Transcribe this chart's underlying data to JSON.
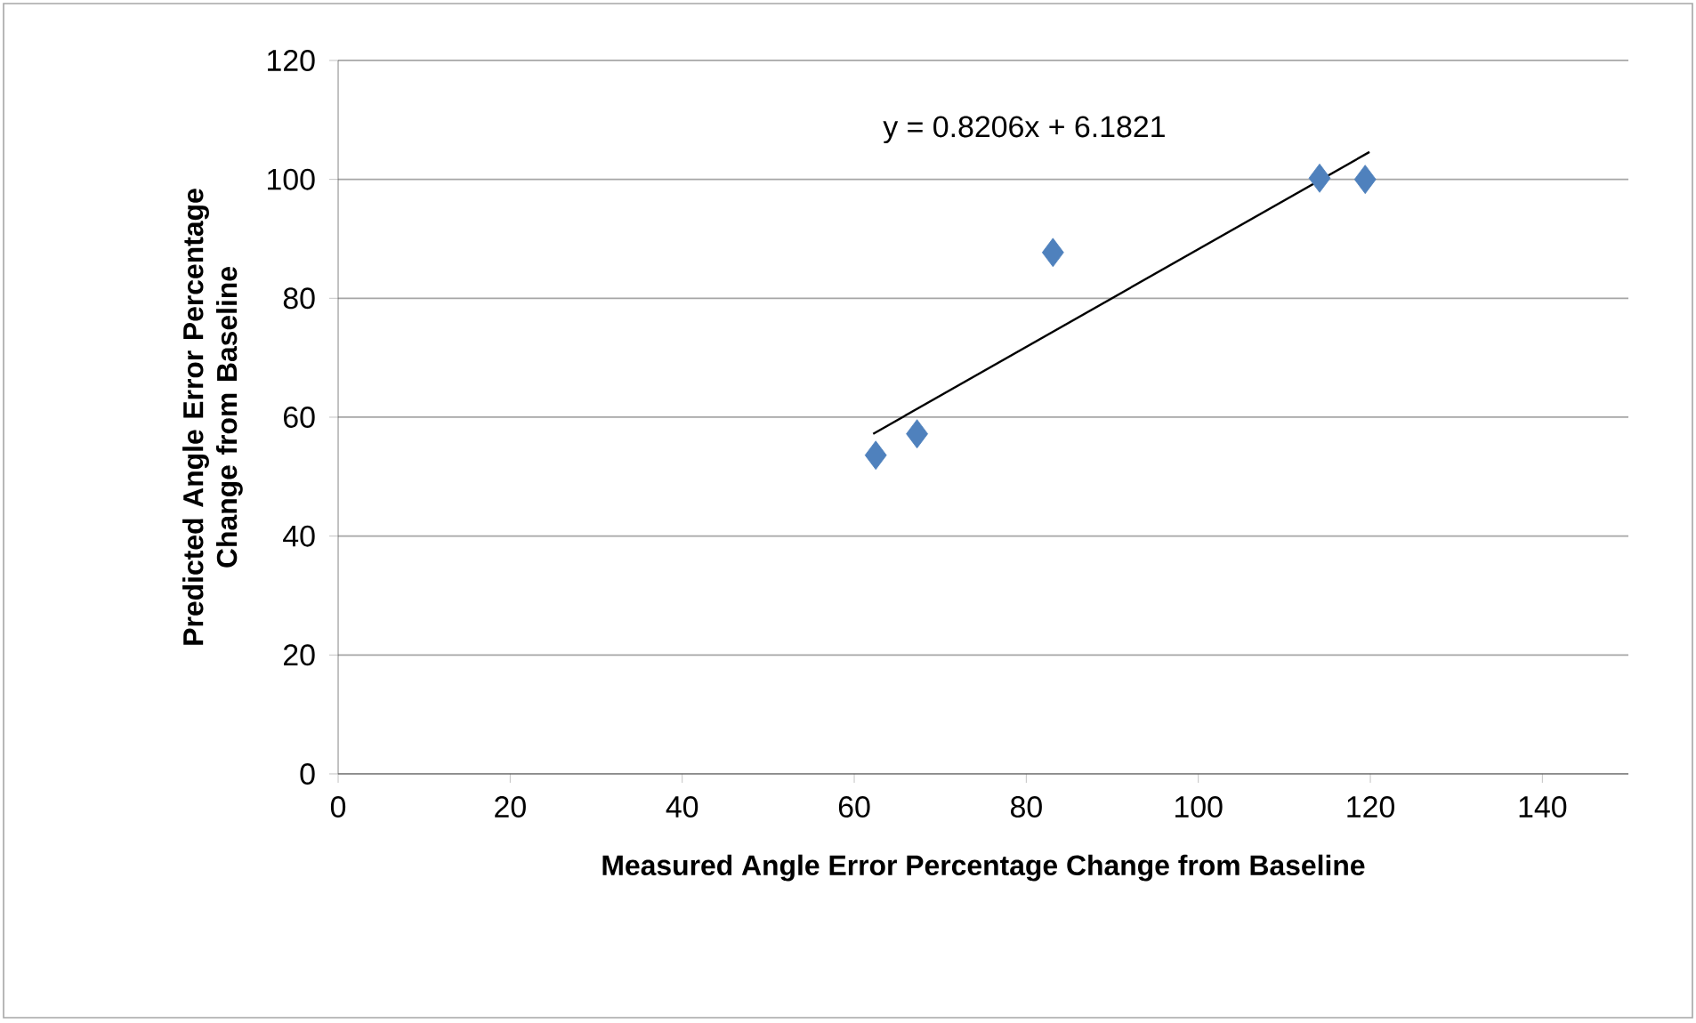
{
  "chart_data": {
    "type": "scatter",
    "xlabel": "Measured Angle Error Percentage Change from Baseline",
    "ylabel": "Predicted Angle Error Percentage Change from Baseline",
    "annotations": [
      "y = 0.8206x + 6.1821"
    ],
    "xlim": [
      0,
      150
    ],
    "ylim": [
      0,
      120
    ],
    "xticks": [
      0,
      20,
      40,
      60,
      80,
      100,
      120,
      140
    ],
    "yticks": [
      0,
      20,
      40,
      60,
      80,
      100,
      120
    ],
    "grid": "y",
    "series": [
      {
        "color": "#4f81bd",
        "marker": "diamond",
        "x": [
          62.5,
          67.3,
          83.1,
          114.1,
          119.4
        ],
        "values": [
          53.6,
          57.2,
          87.7,
          100.2,
          100
        ]
      },
      {
        "type": "line",
        "color": "#000000",
        "marker": "none",
        "line_style": "solid",
        "x": [
          62.2,
          119.9
        ],
        "values": [
          57.2,
          104.6
        ]
      }
    ]
  }
}
